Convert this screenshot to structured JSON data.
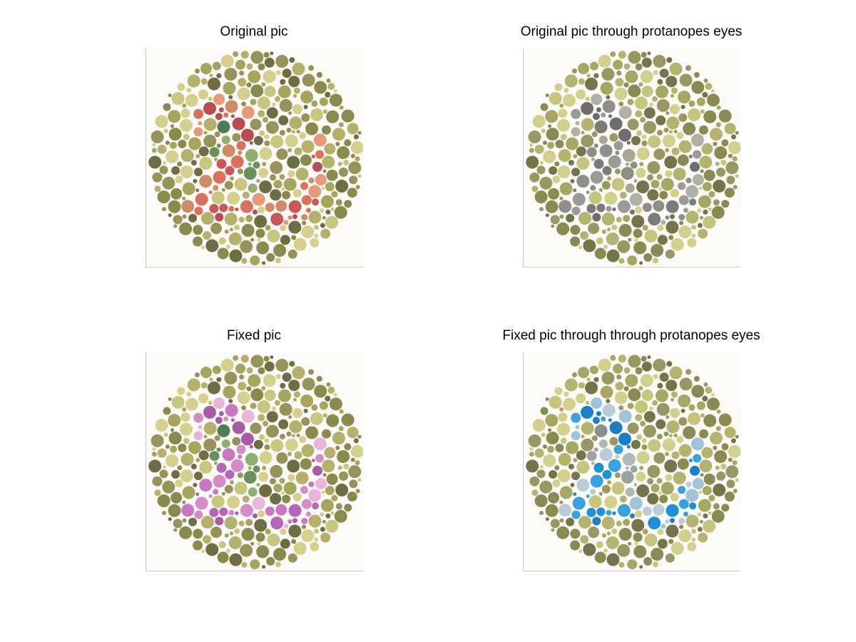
{
  "panels": [
    {
      "title": "Original pic",
      "palette": {
        "background": [
          "#8a8a4c",
          "#a7a45e",
          "#c9c67f",
          "#d6cf8e",
          "#97935a",
          "#b5b06c",
          "#6e6d43"
        ],
        "figure": [
          "#c8595a",
          "#d9725c",
          "#e79a79",
          "#d08a65",
          "#b94d52"
        ],
        "inner": [
          "#6b8f5d",
          "#8fae72",
          "#4f7c57"
        ]
      }
    },
    {
      "title": "Original pic through protanopes eyes",
      "palette": {
        "background": [
          "#8b8a52",
          "#a8a663",
          "#c6c47d",
          "#d3d08e",
          "#9a9862",
          "#b6b370",
          "#76744a"
        ],
        "figure": [
          "#7a7b7a",
          "#9a9b95",
          "#b1b0a4",
          "#8e8f8b",
          "#6d6e6f"
        ],
        "inner": [
          "#8e8f84",
          "#a7a795",
          "#7b7b74"
        ]
      }
    },
    {
      "title": "Fixed pic",
      "palette": {
        "background": [
          "#8a8a4c",
          "#a7a45e",
          "#c9c67f",
          "#d6cf8e",
          "#97935a",
          "#b5b06c",
          "#6e6d43"
        ],
        "figure": [
          "#b566b8",
          "#d48cc8",
          "#e9b5d8",
          "#c977c0",
          "#a65aa8"
        ],
        "inner": [
          "#6b8f5d",
          "#8fae72",
          "#4f7c57"
        ]
      }
    },
    {
      "title": "Fixed pic through through protanopes eyes",
      "palette": {
        "background": [
          "#8b8a52",
          "#a8a663",
          "#c6c47d",
          "#d3d08e",
          "#9a9862",
          "#b6b370",
          "#76744a"
        ],
        "figure": [
          "#1f8fd6",
          "#3aa0e0",
          "#9fc3da",
          "#b9ccd7",
          "#1a7fc4"
        ],
        "inner": [
          "#9aa3a0",
          "#b0b8b4",
          "#86908e"
        ]
      }
    }
  ]
}
